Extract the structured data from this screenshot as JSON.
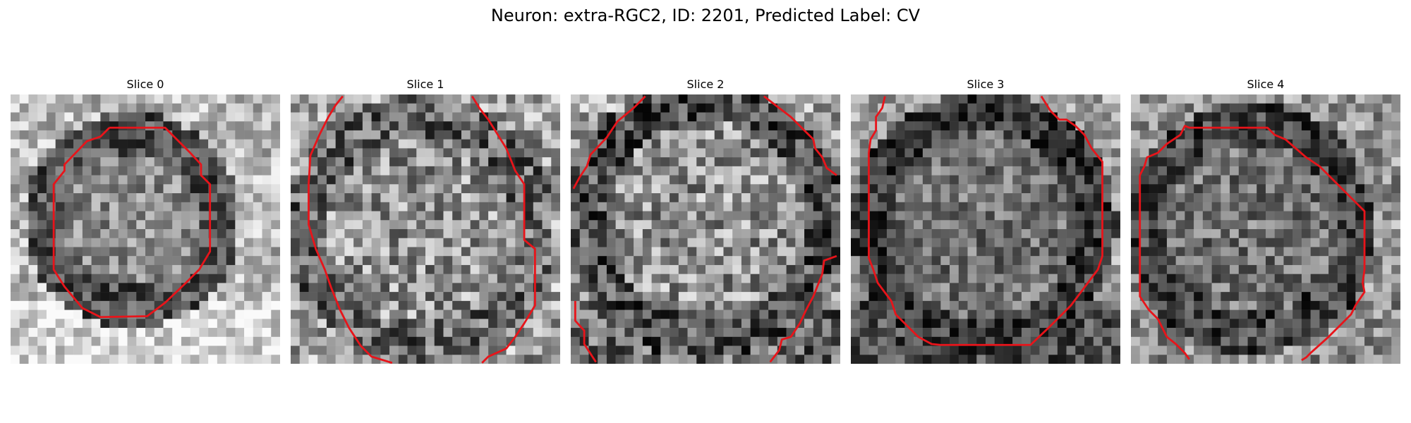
{
  "figure": {
    "title": "Neuron: extra-RGC2, ID: 2201, Predicted Label: CV"
  },
  "colors": {
    "contour": "#e8141a",
    "background": "#ffffff"
  },
  "slices": [
    {
      "title": "Slice 0"
    },
    {
      "title": "Slice 1"
    },
    {
      "title": "Slice 2"
    },
    {
      "title": "Slice 3"
    },
    {
      "title": "Slice 4"
    }
  ]
}
